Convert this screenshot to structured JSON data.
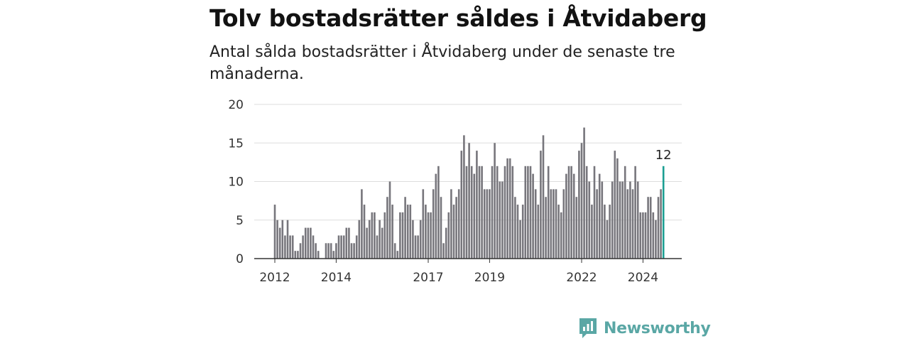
{
  "title": "Tolv bostadsrätter såldes i Åtvidaberg",
  "subtitle": "Antal sålda bostadsrätter i Åtvidaberg under de senaste tre månaderna.",
  "brand": {
    "name": "Newsworthy",
    "color": "#5aa7a5",
    "icon": "newsworthy-logo-icon"
  },
  "colors": {
    "bar": "#77767c",
    "highlight": "#1a9e92",
    "grid": "#dddddd",
    "axis": "#333333"
  },
  "chart_data": {
    "type": "bar",
    "title": "Tolv bostadsrätter såldes i Åtvidaberg",
    "xlabel": "",
    "ylabel": "",
    "ylim": [
      0,
      20
    ],
    "yticks": [
      0,
      5,
      10,
      15,
      20
    ],
    "xticks": [
      "2012",
      "2014",
      "2017",
      "2019",
      "2022",
      "2024"
    ],
    "grid": true,
    "highlight_label": "12",
    "values": [
      7,
      5,
      4,
      5,
      3,
      5,
      3,
      3,
      1,
      1,
      2,
      3,
      4,
      4,
      4,
      3,
      2,
      1,
      0,
      0,
      2,
      2,
      2,
      1,
      2,
      3,
      3,
      3,
      4,
      4,
      2,
      2,
      3,
      5,
      9,
      7,
      4,
      5,
      6,
      6,
      3,
      5,
      4,
      6,
      8,
      10,
      7,
      2,
      1,
      6,
      6,
      8,
      7,
      7,
      5,
      3,
      3,
      5,
      9,
      7,
      6,
      6,
      9,
      11,
      12,
      8,
      2,
      4,
      6,
      9,
      7,
      8,
      9,
      14,
      16,
      12,
      15,
      12,
      11,
      14,
      12,
      12,
      9,
      9,
      9,
      12,
      15,
      12,
      10,
      10,
      12,
      13,
      13,
      12,
      8,
      7,
      5,
      7,
      12,
      12,
      12,
      11,
      9,
      7,
      14,
      16,
      8,
      12,
      9,
      9,
      9,
      7,
      6,
      9,
      11,
      12,
      12,
      11,
      8,
      14,
      15,
      17,
      12,
      10,
      7,
      12,
      9,
      11,
      10,
      7,
      5,
      7,
      10,
      14,
      13,
      10,
      10,
      12,
      9,
      10,
      9,
      12,
      10,
      6,
      6,
      6,
      8,
      8,
      6,
      5,
      8,
      9,
      12
    ]
  }
}
